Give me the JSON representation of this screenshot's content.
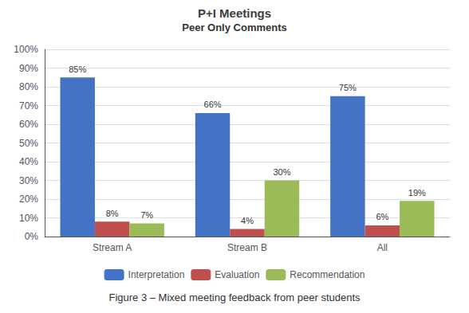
{
  "chart_data": {
    "type": "bar",
    "title": "P+I Meetings",
    "subtitle": "Peer Only Comments",
    "caption": "Figure 3 – Mixed meeting feedback from peer students",
    "categories": [
      "Stream A",
      "Stream B",
      "All"
    ],
    "series": [
      {
        "name": "Interpretation",
        "color": "#4472C4",
        "values": [
          85,
          66,
          75
        ],
        "value_labels": [
          "85%",
          "66%",
          "75%"
        ]
      },
      {
        "name": "Evaluation",
        "color": "#C0504D",
        "values": [
          8,
          4,
          6
        ],
        "value_labels": [
          "8%",
          "4%",
          "6%"
        ]
      },
      {
        "name": "Recommendation",
        "color": "#9BBB59",
        "values": [
          7,
          30,
          19
        ],
        "value_labels": [
          "7%",
          "30%",
          "19%"
        ]
      }
    ],
    "ylim": [
      0,
      100
    ],
    "yticks": [
      {
        "value": 0,
        "label": "0%"
      },
      {
        "value": 10,
        "label": "10%"
      },
      {
        "value": 20,
        "label": "20%"
      },
      {
        "value": 30,
        "label": "30%"
      },
      {
        "value": 40,
        "label": "40%"
      },
      {
        "value": 50,
        "label": "50%"
      },
      {
        "value": 60,
        "label": "60%"
      },
      {
        "value": 70,
        "label": "70%"
      },
      {
        "value": 80,
        "label": "80%"
      },
      {
        "value": 90,
        "label": "90%"
      },
      {
        "value": 100,
        "label": "100%"
      }
    ],
    "grid": true,
    "legend": "bottom",
    "data_labels": true
  }
}
